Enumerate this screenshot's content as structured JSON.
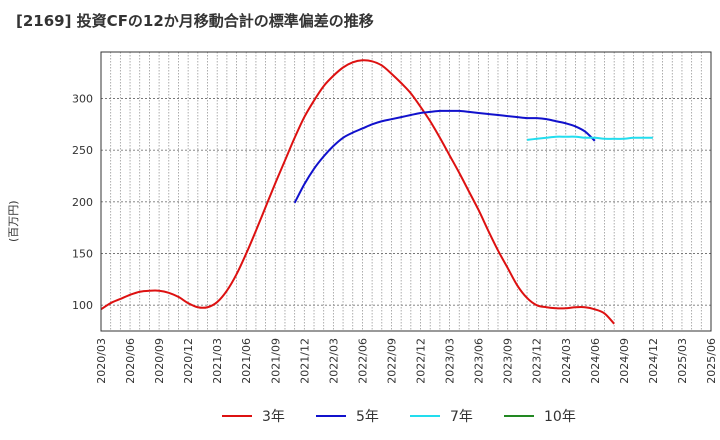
{
  "title": "[2169]  投資CFの12か月移動合計の標準偏差の推移",
  "chart_data": {
    "type": "line",
    "title": "[2169]  投資CFの12か月移動合計の標準偏差の推移",
    "ylabel": "(百万円)",
    "xlabel": "",
    "ylim": [
      75,
      345
    ],
    "yticks": [
      100,
      150,
      200,
      250,
      300
    ],
    "xticks": [
      "2020/03",
      "2020/06",
      "2020/09",
      "2020/12",
      "2021/03",
      "2021/06",
      "2021/09",
      "2021/12",
      "2022/03",
      "2022/06",
      "2022/09",
      "2022/12",
      "2023/03",
      "2023/06",
      "2023/09",
      "2023/12",
      "2024/03",
      "2024/06",
      "2024/09",
      "2024/12",
      "2025/03",
      "2025/06"
    ],
    "grid": true,
    "legend_position": "bottom",
    "series": [
      {
        "name": "3年",
        "color": "#dd1111",
        "x": [
          "2020/03",
          "2020/04",
          "2020/05",
          "2020/06",
          "2020/07",
          "2020/08",
          "2020/09",
          "2020/10",
          "2020/11",
          "2020/12",
          "2021/01",
          "2021/02",
          "2021/03",
          "2021/04",
          "2021/05",
          "2021/06",
          "2021/07",
          "2021/08",
          "2021/09",
          "2021/10",
          "2021/11",
          "2021/12",
          "2022/01",
          "2022/02",
          "2022/03",
          "2022/04",
          "2022/05",
          "2022/06",
          "2022/07",
          "2022/08",
          "2022/09",
          "2022/10",
          "2022/11",
          "2022/12",
          "2023/01",
          "2023/02",
          "2023/03",
          "2023/04",
          "2023/05",
          "2023/06",
          "2023/07",
          "2023/08",
          "2023/09",
          "2023/10",
          "2023/11",
          "2023/12",
          "2024/01",
          "2024/02",
          "2024/03",
          "2024/04",
          "2024/05",
          "2024/06",
          "2024/07",
          "2024/08",
          "2024/09",
          "2024/10",
          "2024/11",
          "2024/12"
        ],
        "values": [
          96,
          102,
          106,
          110,
          113,
          114,
          114,
          112,
          108,
          102,
          98,
          98,
          103,
          114,
          130,
          150,
          172,
          195,
          218,
          240,
          262,
          282,
          298,
          312,
          322,
          330,
          335,
          337,
          336,
          332,
          324,
          315,
          305,
          292,
          278,
          262,
          245,
          228,
          210,
          192,
          172,
          153,
          136,
          119,
          107,
          100,
          98,
          97,
          97,
          98,
          98,
          96,
          92,
          82,
          null,
          null,
          null,
          null
        ]
      },
      {
        "name": "5年",
        "color": "#1111cc",
        "x": [
          "2021/11",
          "2021/12",
          "2022/01",
          "2022/02",
          "2022/03",
          "2022/04",
          "2022/05",
          "2022/06",
          "2022/07",
          "2022/08",
          "2022/09",
          "2022/10",
          "2022/11",
          "2022/12",
          "2023/01",
          "2023/02",
          "2023/03",
          "2023/04",
          "2023/05",
          "2023/06",
          "2023/07",
          "2023/08",
          "2023/09",
          "2023/10",
          "2023/11",
          "2023/12",
          "2024/01",
          "2024/02",
          "2024/03",
          "2024/04",
          "2024/05",
          "2024/06",
          "2024/07",
          "2024/08",
          "2024/09",
          "2024/10",
          "2024/11",
          "2024/12"
        ],
        "values": [
          199,
          217,
          232,
          244,
          254,
          262,
          267,
          271,
          275,
          278,
          280,
          282,
          284,
          286,
          287,
          288,
          288,
          288,
          287,
          286,
          285,
          284,
          283,
          282,
          281,
          281,
          280,
          278,
          276,
          273,
          268,
          259,
          null,
          null,
          null,
          null,
          null,
          null
        ]
      },
      {
        "name": "7年",
        "color": "#22ddee",
        "x": [
          "2023/11",
          "2023/12",
          "2024/01",
          "2024/02",
          "2024/03",
          "2024/04",
          "2024/05",
          "2024/06",
          "2024/07",
          "2024/08",
          "2024/09",
          "2024/10",
          "2024/11",
          "2024/12"
        ],
        "values": [
          260,
          261,
          262,
          263,
          263,
          263,
          262,
          262,
          261,
          261,
          261,
          262,
          262,
          262
        ]
      },
      {
        "name": "10年",
        "color": "#228822",
        "x": [],
        "values": []
      }
    ]
  }
}
